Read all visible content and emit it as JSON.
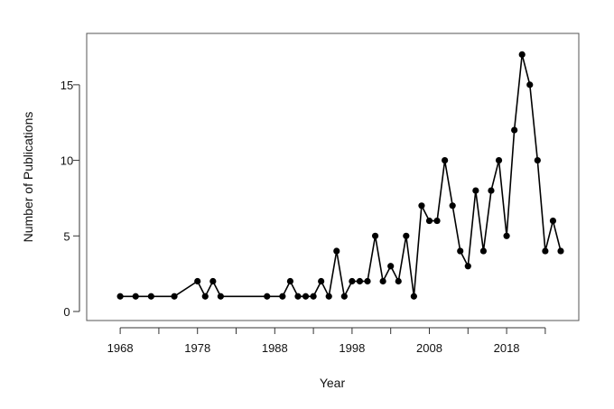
{
  "chart_data": {
    "type": "line",
    "title": "",
    "xlabel": "Year",
    "ylabel": "Number of Publications",
    "xlim": [
      1966,
      2025
    ],
    "ylim": [
      0,
      17.8
    ],
    "x_ticks": [
      1968,
      1978,
      1988,
      1998,
      2008,
      2018
    ],
    "y_ticks": [
      0,
      5,
      10,
      15
    ],
    "grid": false,
    "series": [
      {
        "x": [
          1968,
          1970,
          1972,
          1975,
          1978,
          1979,
          1980,
          1981,
          1987,
          1989,
          1990,
          1991,
          1992,
          1993,
          1994,
          1995,
          1996,
          1997,
          1998,
          1999,
          2000,
          2001,
          2002,
          2003,
          2004,
          2005,
          2006,
          2007,
          2008,
          2009,
          2010,
          2011,
          2012,
          2013,
          2014,
          2015,
          2016,
          2017,
          2018,
          2019,
          2020,
          2021,
          2022,
          2023,
          2024,
          2025
        ],
        "y": [
          1,
          1,
          1,
          1,
          2,
          1,
          2,
          1,
          1,
          1,
          2,
          1,
          1,
          1,
          2,
          1,
          4,
          1,
          2,
          2,
          2,
          5,
          2,
          3,
          2,
          5,
          1,
          7,
          6,
          6,
          10,
          7,
          4,
          3,
          8,
          4,
          8,
          10,
          5,
          12,
          17,
          15,
          10,
          4,
          6,
          4
        ]
      }
    ]
  }
}
